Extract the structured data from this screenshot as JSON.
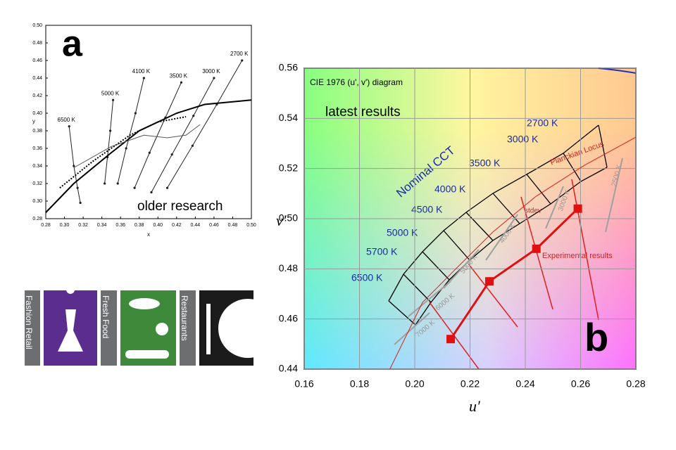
{
  "chart_data": [
    {
      "type": "line",
      "panel": "a",
      "annotations": [
        "older research"
      ],
      "xlabel": "x",
      "ylabel": "y",
      "xlim": [
        0.28,
        0.5
      ],
      "xticks": [
        0.28,
        {
          "value": 0.3,
          "label": "0.30"
        },
        0.32,
        0.34,
        0.36,
        0.38,
        {
          "value": 0.4,
          "label": "0.40"
        },
        0.42,
        0.44,
        0.46,
        0.48,
        {
          "value": 0.5,
          "label": "0.50"
        }
      ],
      "ylim": [
        0.28,
        0.5
      ],
      "yticks": [
        0.28,
        {
          "value": 0.3,
          "label": "0.30"
        },
        0.32,
        0.34,
        0.36,
        0.38,
        {
          "value": 0.4,
          "label": "0.40"
        },
        0.42,
        0.44,
        0.46,
        0.48,
        {
          "value": 0.5,
          "label": "0.50"
        }
      ],
      "series": [
        {
          "name": "6500 K",
          "color": "#222222",
          "x": [
            0.305,
            0.31,
            0.314,
            0.317
          ],
          "values": [
            0.385,
            0.34,
            0.315,
            0.298
          ]
        },
        {
          "name": "5000 K",
          "color": "#222222",
          "x": [
            0.352,
            0.349,
            0.346,
            0.343
          ],
          "values": [
            0.415,
            0.38,
            0.35,
            0.32
          ]
        },
        {
          "name": "4100 K",
          "color": "#222222",
          "x": [
            0.385,
            0.376,
            0.366,
            0.357
          ],
          "values": [
            0.44,
            0.4,
            0.36,
            0.32
          ]
        },
        {
          "name": "3500 K",
          "color": "#222222",
          "x": [
            0.425,
            0.408,
            0.391,
            0.375
          ],
          "values": [
            0.435,
            0.395,
            0.355,
            0.315
          ]
        },
        {
          "name": "3000 K",
          "color": "#222222",
          "x": [
            0.46,
            0.438,
            0.415,
            0.393
          ],
          "values": [
            0.44,
            0.397,
            0.353,
            0.31
          ]
        },
        {
          "name": "2700 K",
          "color": "#222222",
          "x": [
            0.49,
            0.463,
            0.437,
            0.41
          ],
          "values": [
            0.46,
            0.41,
            0.363,
            0.315
          ]
        },
        {
          "color": "#000000",
          "width": 2,
          "x": [
            0.28,
            0.31,
            0.35,
            0.38,
            0.42,
            0.45,
            0.5
          ],
          "values": [
            0.287,
            0.32,
            0.355,
            0.38,
            0.4,
            0.41,
            0.415
          ]
        },
        {
          "color": "#000000",
          "width": 2,
          "style": "dotted",
          "x": [
            0.295,
            0.33,
            0.37,
            0.4,
            0.43
          ],
          "values": [
            0.315,
            0.345,
            0.375,
            0.39,
            0.396
          ]
        },
        {
          "color": "#555555",
          "x": [
            0.31,
            0.35,
            0.385,
            0.41,
            0.43,
            0.445
          ],
          "values": [
            0.338,
            0.362,
            0.375,
            0.372,
            0.375,
            0.387
          ]
        }
      ]
    },
    {
      "type": "line",
      "panel": "b",
      "title": "CIE 1976 (u', v') diagram",
      "xlabel": "u′",
      "ylabel": "v′",
      "annotations": [
        "latest results",
        "Nominal CCT",
        "2700 K",
        "3000 K",
        "3500 K",
        "4000 K",
        "4500 K",
        "5000 K",
        "5700 K",
        "6500 K",
        "stdev",
        "2500 K",
        "3000 K",
        "4000 K",
        "5000 K",
        "6000 K",
        "7000 K"
      ],
      "xlim": [
        0.16,
        0.28
      ],
      "xticks": [
        0.16,
        0.18,
        {
          "value": 0.2,
          "label": "0.20"
        },
        0.22,
        0.24,
        0.26,
        0.28
      ],
      "ylim": [
        0.44,
        0.56
      ],
      "yticks": [
        0.44,
        0.46,
        0.48,
        {
          "value": 0.5,
          "label": "0.50"
        },
        0.52,
        0.54,
        0.56
      ],
      "grid": true,
      "series": [
        {
          "name": "Planckian Locus",
          "color": "#d42020",
          "x": [
            0.191,
            0.2028,
            0.2155,
            0.2283,
            0.2436,
            0.2614,
            0.28
          ],
          "values": [
            0.44,
            0.4666,
            0.4807,
            0.4947,
            0.5087,
            0.5213,
            0.5325
          ]
        },
        {
          "name": "Experimental results",
          "color": "#e01010",
          "width": 3,
          "markers": true,
          "x": [
            0.213,
            0.227,
            0.244,
            0.259
          ],
          "values": [
            0.452,
            0.475,
            0.488,
            0.504
          ]
        }
      ]
    }
  ],
  "panels": [
    "Fashion Retail",
    "Fresh Food",
    "Restaurants"
  ]
}
